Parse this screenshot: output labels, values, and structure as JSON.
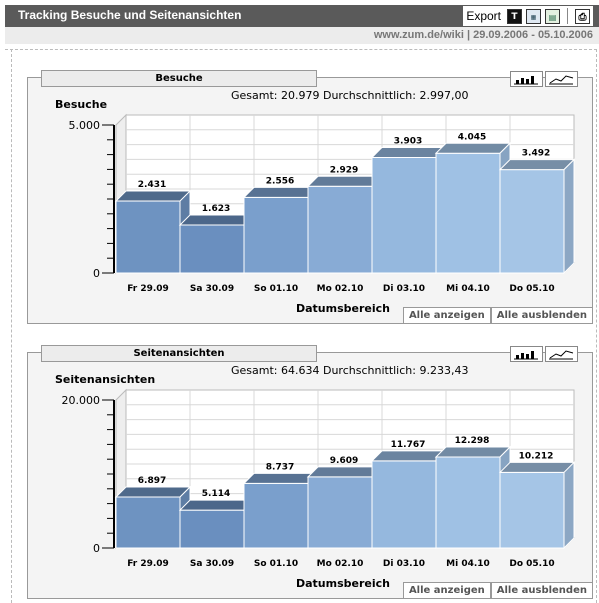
{
  "header": {
    "title": "Tracking Besuche und Seitenansichten",
    "export_label": "Export"
  },
  "export_icons": [
    "T",
    "csv",
    "xls"
  ],
  "subbar": {
    "site": "www.zum.de/wiki",
    "separator": "|",
    "range": "29.09.2006 - 05.10.2006"
  },
  "panels": [
    {
      "tab_label": "Besuche",
      "summary": "Gesamt: 20.979   Durchschnittlich: 2.997,00",
      "show_all": "Alle anzeigen",
      "hide_all": "Alle ausblenden"
    },
    {
      "tab_label": "Seitenansichten",
      "summary": "Gesamt: 64.634   Durchschnittlich: 9.233,43",
      "show_all": "Alle anzeigen",
      "hide_all": "Alle ausblenden"
    }
  ],
  "chart_data": [
    {
      "type": "bar",
      "title": "",
      "xlabel": "Datumsbereich",
      "ylabel": "Besuche",
      "categories": [
        "Fr 29.09",
        "Sa 30.09",
        "So 01.10",
        "Mo 02.10",
        "Di 03.10",
        "Mi 04.10",
        "Do 05.10"
      ],
      "values": [
        2431,
        1623,
        2556,
        2929,
        3903,
        4045,
        3492
      ],
      "value_labels": [
        "2.431",
        "1.623",
        "2.556",
        "2.929",
        "3.903",
        "4.045",
        "3.492"
      ],
      "ylim": [
        0,
        5000
      ],
      "ytick_labels": [
        "0",
        "5.000"
      ],
      "grid": true,
      "style": "3d",
      "colors": [
        "#6e93c1",
        "#6a8fbf",
        "#7a9fcc",
        "#88abd5",
        "#95b8de",
        "#9fc1e4",
        "#a5c5e6"
      ]
    },
    {
      "type": "bar",
      "title": "",
      "xlabel": "Datumsbereich",
      "ylabel": "Seitenansichten",
      "categories": [
        "Fr 29.09",
        "Sa 30.09",
        "So 01.10",
        "Mo 02.10",
        "Di 03.10",
        "Mi 04.10",
        "Do 05.10"
      ],
      "values": [
        6897,
        5114,
        8737,
        9609,
        11767,
        12298,
        10212
      ],
      "value_labels": [
        "6.897",
        "5.114",
        "8.737",
        "9.609",
        "11.767",
        "12.298",
        "10.212"
      ],
      "ylim": [
        0,
        20000
      ],
      "ytick_labels": [
        "0",
        "20.000"
      ],
      "grid": true,
      "style": "3d",
      "colors": [
        "#6e93c1",
        "#6a8fbf",
        "#7a9fcc",
        "#88abd5",
        "#95b8de",
        "#9fc1e4",
        "#a5c5e6"
      ]
    }
  ]
}
